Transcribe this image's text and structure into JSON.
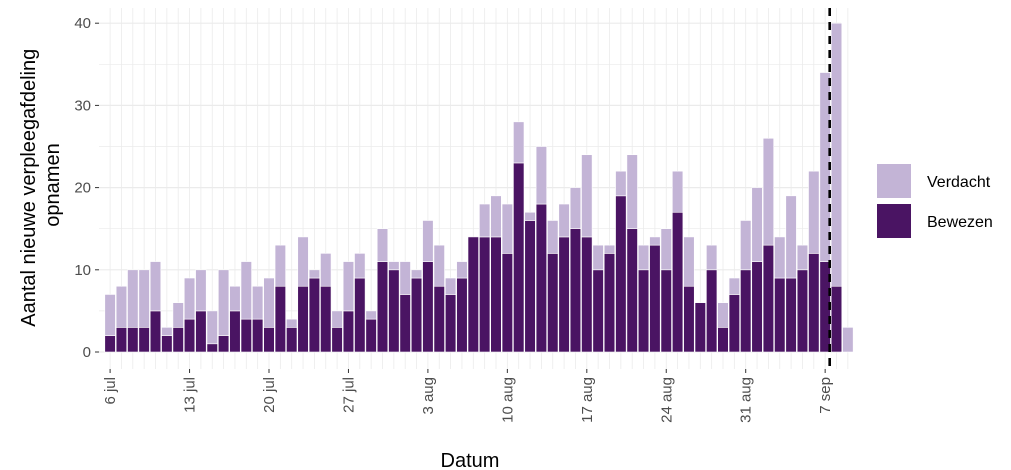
{
  "chart_data": {
    "type": "bar",
    "stacked": true,
    "xlabel": "Datum",
    "ylabel": "Aantal nieuwe verpleegafdeling opnamen",
    "ylabel_lines": [
      "Aantal nieuwe verpleegafdeling",
      "opnamen"
    ],
    "ylim": [
      0,
      42
    ],
    "y_ticks": [
      0,
      10,
      20,
      30,
      40
    ],
    "x_ticks": [
      {
        "day": 0,
        "label": "6 jul"
      },
      {
        "day": 7,
        "label": "13 jul"
      },
      {
        "day": 14,
        "label": "20 jul"
      },
      {
        "day": 21,
        "label": "27 jul"
      },
      {
        "day": 28,
        "label": "3 aug"
      },
      {
        "day": 35,
        "label": "10 aug"
      },
      {
        "day": 42,
        "label": "17 aug"
      },
      {
        "day": 49,
        "label": "24 aug"
      },
      {
        "day": 56,
        "label": "31 aug"
      },
      {
        "day": 63,
        "label": "7 sep"
      }
    ],
    "start_date": "2020-07-06",
    "reference_line": {
      "label": "7 sep",
      "day": 63.4,
      "style": "dashed"
    },
    "grid": true,
    "legend_position": "right",
    "colors": {
      "bewezen": "#4a1463",
      "verdacht": "#c3b4d6",
      "grid": "#ebebeb",
      "refline": "#000000"
    },
    "series": [
      {
        "name": "Bewezen",
        "values": [
          2,
          3,
          3,
          3,
          5,
          2,
          3,
          4,
          5,
          1,
          2,
          5,
          4,
          4,
          3,
          8,
          3,
          8,
          9,
          8,
          3,
          5,
          9,
          4,
          11,
          10,
          7,
          9,
          11,
          8,
          7,
          9,
          14,
          14,
          14,
          12,
          23,
          16,
          18,
          12,
          14,
          15,
          14,
          10,
          12,
          19,
          15,
          10,
          13,
          10,
          17,
          8,
          6,
          10,
          3,
          7,
          10,
          11,
          13,
          9,
          9,
          10,
          12,
          11,
          8,
          0
        ]
      },
      {
        "name": "Verdacht",
        "values": [
          5,
          5,
          7,
          7,
          6,
          1,
          3,
          5,
          5,
          4,
          8,
          3,
          7,
          4,
          6,
          5,
          1,
          6,
          1,
          4,
          2,
          6,
          3,
          1,
          4,
          1,
          4,
          1,
          5,
          5,
          2,
          2,
          0,
          4,
          5,
          6,
          5,
          1,
          7,
          4,
          4,
          5,
          10,
          3,
          1,
          3,
          9,
          3,
          1,
          5,
          5,
          6,
          0,
          3,
          3,
          2,
          6,
          9,
          13,
          5,
          10,
          3,
          10,
          23,
          32,
          3
        ]
      }
    ]
  },
  "legend": {
    "items": [
      {
        "label": "Verdacht",
        "color": "#c3b4d6"
      },
      {
        "label": "Bewezen",
        "color": "#4a1463"
      }
    ]
  }
}
